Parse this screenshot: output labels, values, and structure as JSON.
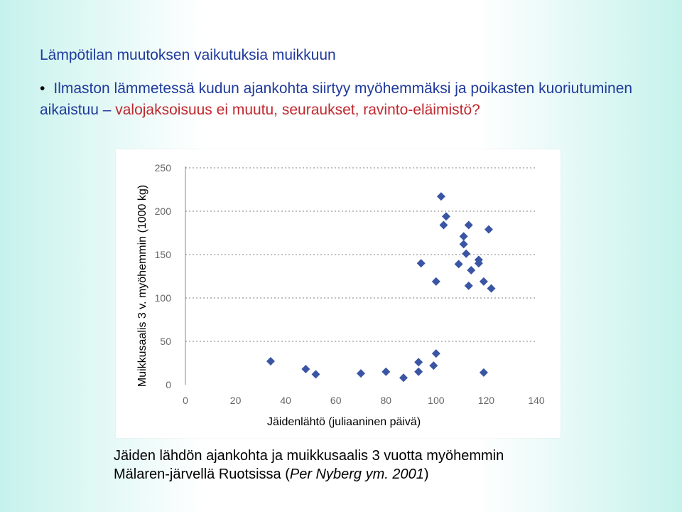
{
  "slide": {
    "title": "Lämpötilan muutoksen vaikutuksia muikkuun",
    "bullet": {
      "text_normal": "Ilmaston lämmetessä kudun ajankohta siirtyy myöhemmäksi ja poikasten kuoriutuminen aikaistuu – ",
      "text_accent": "valojaksoisuus ei muutu, seuraukset, ravinto-eläimistö?"
    },
    "caption": {
      "line1": "Jäiden lähdön ajankohta ja muikkusaalis 3 vuotta myöhemmin",
      "line2_prefix": "Mälaren-järvellä Ruotsissa (",
      "line2_italic": "Per Nyberg ym. 2001",
      "line2_suffix": ")"
    }
  },
  "chart_data": {
    "type": "scatter",
    "xlabel": "Jäidenlähtö (juliaaninen päivä)",
    "ylabel": "Muikkusaalis 3 v. myöhemmin (1000 kg)",
    "xlim": [
      0,
      140
    ],
    "ylim": [
      0,
      250
    ],
    "xticks": [
      0,
      20,
      40,
      60,
      80,
      100,
      120,
      140
    ],
    "yticks": [
      0,
      50,
      100,
      150,
      200,
      250
    ],
    "grid": "horizontal-dotted",
    "marker": "diamond",
    "marker_color": "#3a55a4",
    "points": [
      [
        34,
        27
      ],
      [
        48,
        18
      ],
      [
        52,
        12
      ],
      [
        70,
        13
      ],
      [
        80,
        15
      ],
      [
        87,
        8
      ],
      [
        93,
        26
      ],
      [
        93,
        15
      ],
      [
        94,
        140
      ],
      [
        99,
        22
      ],
      [
        100,
        36
      ],
      [
        100,
        119
      ],
      [
        102,
        217
      ],
      [
        103,
        184
      ],
      [
        104,
        194
      ],
      [
        109,
        139
      ],
      [
        111,
        171
      ],
      [
        111,
        162
      ],
      [
        112,
        151
      ],
      [
        113,
        184
      ],
      [
        113,
        114
      ],
      [
        114,
        132
      ],
      [
        117,
        144
      ],
      [
        117,
        140
      ],
      [
        119,
        119
      ],
      [
        119,
        14
      ],
      [
        121,
        179
      ],
      [
        122,
        111
      ]
    ]
  }
}
